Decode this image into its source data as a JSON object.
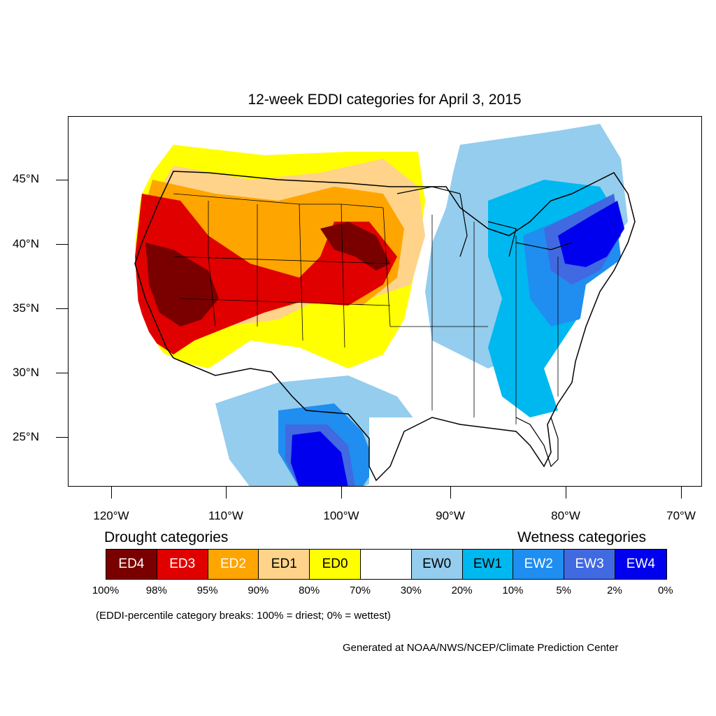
{
  "title": "12-week EDDI categories for April 3, 2015",
  "lat_labels": [
    "45°N",
    "40°N",
    "35°N",
    "30°N",
    "25°N"
  ],
  "lon_labels": [
    "120°W",
    "110°W",
    "100°W",
    "90°W",
    "80°W",
    "70°W"
  ],
  "legend": {
    "drought_heading": "Drought categories",
    "wetness_heading": "Wetness categories",
    "categories": [
      {
        "label": "ED4",
        "color": "#7a0000",
        "text_color": "#ffffff"
      },
      {
        "label": "ED3",
        "color": "#e00000",
        "text_color": "#ffffff"
      },
      {
        "label": "ED2",
        "color": "#ffa500",
        "text_color": "#ffffff"
      },
      {
        "label": "ED1",
        "color": "#ffd38a",
        "text_color": "#000000"
      },
      {
        "label": "ED0",
        "color": "#ffff00",
        "text_color": "#000000"
      },
      {
        "label": "",
        "color": "#ffffff",
        "text_color": "#000000"
      },
      {
        "label": "EW0",
        "color": "#94cdee",
        "text_color": "#000000"
      },
      {
        "label": "EW1",
        "color": "#00b8f0",
        "text_color": "#000000"
      },
      {
        "label": "EW2",
        "color": "#1f8ef0",
        "text_color": "#ffffff"
      },
      {
        "label": "EW3",
        "color": "#4169e1",
        "text_color": "#ffffff"
      },
      {
        "label": "EW4",
        "color": "#0000ee",
        "text_color": "#ffffff"
      }
    ],
    "breaks": [
      "100%",
      "98%",
      "95%",
      "90%",
      "80%",
      "70%",
      "30%",
      "20%",
      "10%",
      "5%",
      "2%",
      "0%"
    ]
  },
  "note": "(EDDI-percentile category breaks: 100% = driest; 0% = wettest)",
  "credit": "Generated at NOAA/NWS/NCEP/Climate Prediction Center"
}
